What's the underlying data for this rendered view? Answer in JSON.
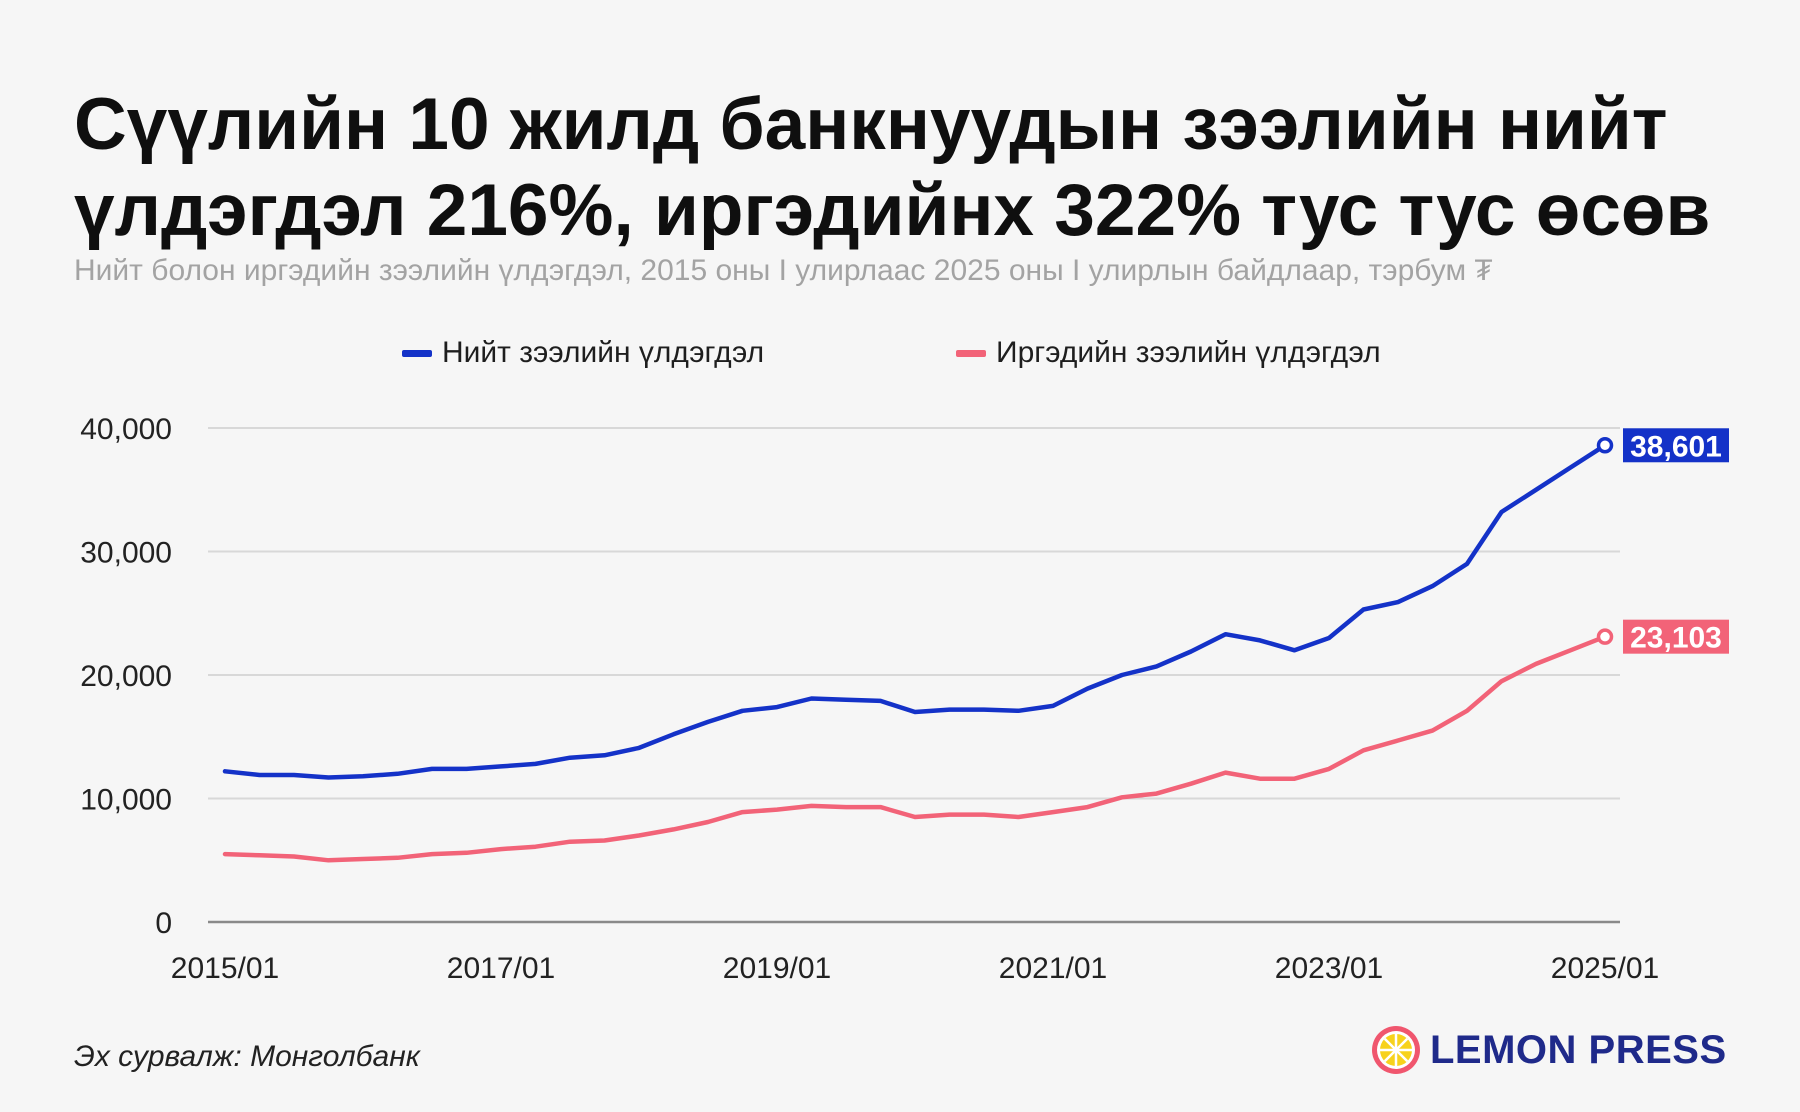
{
  "title": "Сүүлийн 10 жилд банкнуудын зээлийн нийт үлдэгдэл 216%, иргэдийнх 322% тус тус өсөв",
  "subtitle": "Нийт болон иргэдийн зээлийн үлдэгдэл, 2015 оны I улирлаас 2025 оны I улирлын байдлаар, тэрбум ₮",
  "source": "Эх сурвалж: Монголбанк",
  "logo": {
    "text": "LEMON PRESS",
    "icon": "lemon-slice-icon"
  },
  "colors": {
    "total": "#1432c8",
    "household": "#f26378",
    "grid": "#d8d8d8",
    "axis": "#8a8a8a"
  },
  "chart_data": {
    "type": "line",
    "x_tick_labels": [
      "2015/01",
      "2017/01",
      "2019/01",
      "2021/01",
      "2023/01",
      "2025/01"
    ],
    "y_tick_labels": [
      "40,000",
      "30,000",
      "20,000",
      "10,000",
      "0"
    ],
    "ylim": [
      0,
      40000
    ],
    "y_ticks": [
      40000,
      30000,
      20000,
      10000,
      0
    ],
    "grid": true,
    "legend_position": "top",
    "x": [
      "2015/01",
      "2015/04",
      "2015/07",
      "2015/10",
      "2016/01",
      "2016/04",
      "2016/07",
      "2016/10",
      "2017/01",
      "2017/04",
      "2017/07",
      "2017/10",
      "2018/01",
      "2018/04",
      "2018/07",
      "2018/10",
      "2019/01",
      "2019/04",
      "2019/07",
      "2019/10",
      "2020/01",
      "2020/04",
      "2020/07",
      "2020/10",
      "2021/01",
      "2021/04",
      "2021/07",
      "2021/10",
      "2022/01",
      "2022/04",
      "2022/07",
      "2022/10",
      "2023/01",
      "2023/04",
      "2023/07",
      "2023/10",
      "2024/01",
      "2024/04",
      "2024/07",
      "2024/10",
      "2025/01"
    ],
    "series": [
      {
        "name": "Нийт зээлийн үлдэгдэл",
        "color": "#1432c8",
        "end_label": "38,601",
        "values": [
          12200,
          11900,
          11900,
          11700,
          11800,
          12000,
          12400,
          12400,
          12600,
          12800,
          13300,
          13500,
          14100,
          15200,
          16200,
          17100,
          17400,
          18100,
          18000,
          17900,
          17000,
          17200,
          17200,
          17100,
          17500,
          18900,
          20000,
          20700,
          21900,
          23300,
          22800,
          22000,
          23000,
          25300,
          25900,
          27200,
          29000,
          33200,
          35000,
          36800,
          38601
        ]
      },
      {
        "name": "Иргэдийн зээлийн үлдэгдэл",
        "color": "#f26378",
        "end_label": "23,103",
        "values": [
          5500,
          5400,
          5300,
          5000,
          5100,
          5200,
          5500,
          5600,
          5900,
          6100,
          6500,
          6600,
          7000,
          7500,
          8100,
          8900,
          9100,
          9400,
          9300,
          9300,
          8500,
          8700,
          8700,
          8500,
          8900,
          9300,
          10100,
          10400,
          11200,
          12100,
          11600,
          11600,
          12400,
          13900,
          14700,
          15500,
          17100,
          19500,
          20900,
          22000,
          23103
        ]
      }
    ]
  }
}
